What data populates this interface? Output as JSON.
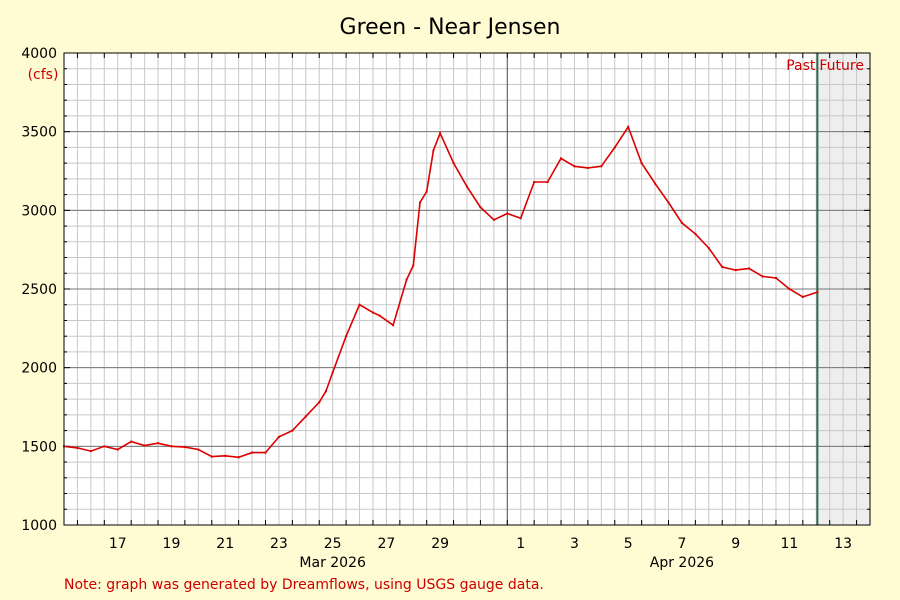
{
  "chart_data": {
    "type": "line",
    "title": "Green - Near Jensen",
    "ylabel": "(cfs)",
    "ylim": [
      1000,
      4000
    ],
    "yticks": [
      1000,
      1500,
      2000,
      2500,
      3000,
      3500,
      4000
    ],
    "x_range": [
      "2026-03-15T12:00",
      "2026-04-14T12:00"
    ],
    "x_tick_labels": [
      {
        "date": "2026-03-17",
        "label": "17"
      },
      {
        "date": "2026-03-19",
        "label": "19"
      },
      {
        "date": "2026-03-21",
        "label": "21"
      },
      {
        "date": "2026-03-23",
        "label": "23"
      },
      {
        "date": "2026-03-25",
        "label": "25"
      },
      {
        "date": "2026-03-27",
        "label": "27"
      },
      {
        "date": "2026-03-29",
        "label": "29"
      },
      {
        "date": "2026-04-01",
        "label": "1"
      },
      {
        "date": "2026-04-03",
        "label": "3"
      },
      {
        "date": "2026-04-05",
        "label": "5"
      },
      {
        "date": "2026-04-07",
        "label": "7"
      },
      {
        "date": "2026-04-09",
        "label": "9"
      },
      {
        "date": "2026-04-11",
        "label": "11"
      },
      {
        "date": "2026-04-13",
        "label": "13"
      }
    ],
    "month_labels": [
      {
        "date": "2026-03-25",
        "label": "Mar 2026"
      },
      {
        "date": "2026-04-07",
        "label": "Apr 2026"
      }
    ],
    "month_boundary": "2026-04-01",
    "now": "2026-04-12T13:00",
    "past_label": "Past",
    "future_label": "Future",
    "grid": true,
    "series": [
      {
        "color": "#dd0000",
        "x": [
          "2026-03-15T12:00",
          "2026-03-16T00:00",
          "2026-03-16T12:00",
          "2026-03-17T00:00",
          "2026-03-17T12:00",
          "2026-03-18T00:00",
          "2026-03-18T12:00",
          "2026-03-19T00:00",
          "2026-03-19T12:00",
          "2026-03-20T00:00",
          "2026-03-20T12:00",
          "2026-03-21T00:00",
          "2026-03-21T12:00",
          "2026-03-22T00:00",
          "2026-03-22T12:00",
          "2026-03-23T00:00",
          "2026-03-23T12:00",
          "2026-03-24T00:00",
          "2026-03-24T12:00",
          "2026-03-25T00:00",
          "2026-03-25T06:00",
          "2026-03-25T12:00",
          "2026-03-26T00:00",
          "2026-03-26T12:00",
          "2026-03-27T00:00",
          "2026-03-27T06:00",
          "2026-03-27T18:00",
          "2026-03-28T06:00",
          "2026-03-28T12:00",
          "2026-03-28T18:00",
          "2026-03-29T00:00",
          "2026-03-29T06:00",
          "2026-03-29T12:00",
          "2026-03-30T00:00",
          "2026-03-30T12:00",
          "2026-03-31T00:00",
          "2026-03-31T12:00",
          "2026-04-01T00:00",
          "2026-04-01T12:00",
          "2026-04-02T00:00",
          "2026-04-02T12:00",
          "2026-04-03T00:00",
          "2026-04-03T12:00",
          "2026-04-04T00:00",
          "2026-04-04T12:00",
          "2026-04-05T00:00",
          "2026-04-05T12:00",
          "2026-04-06T00:00",
          "2026-04-06T12:00",
          "2026-04-07T00:00",
          "2026-04-07T12:00",
          "2026-04-08T00:00",
          "2026-04-08T12:00",
          "2026-04-09T00:00",
          "2026-04-09T12:00",
          "2026-04-10T00:00",
          "2026-04-10T12:00",
          "2026-04-11T00:00",
          "2026-04-11T12:00",
          "2026-04-12T00:00",
          "2026-04-12T13:00"
        ],
        "y": [
          1500,
          1490,
          1470,
          1500,
          1480,
          1530,
          1505,
          1520,
          1500,
          1495,
          1480,
          1435,
          1440,
          1430,
          1460,
          1460,
          1560,
          1600,
          1690,
          1780,
          1850,
          1970,
          2200,
          2400,
          2350,
          2330,
          2270,
          2560,
          2650,
          3050,
          3120,
          3380,
          3490,
          3300,
          3150,
          3020,
          2940,
          2980,
          2950,
          3180,
          3180,
          3330,
          3280,
          3270,
          3280,
          3400,
          3530,
          3300,
          3170,
          3050,
          2920,
          2850,
          2760,
          2640,
          2620,
          2630,
          2580,
          2570,
          2500,
          2450,
          2480
        ]
      }
    ],
    "note": "Note: graph was generated by Dreamflows, using USGS gauge data."
  }
}
